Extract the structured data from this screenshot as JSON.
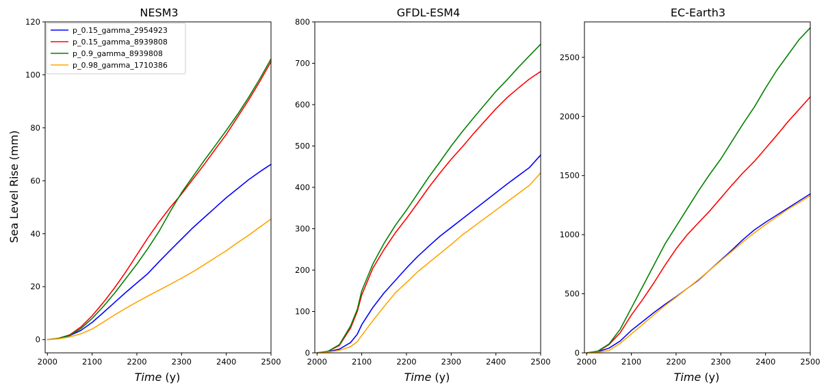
{
  "chart_data": [
    {
      "type": "line",
      "title": "NESM3",
      "xlabel_italic": "Time",
      "xlabel_unit": " (y)",
      "ylabel": "Sea Level Rise (mm)",
      "xlim": [
        1995,
        2500
      ],
      "ylim": [
        -5,
        120
      ],
      "xticks": [
        2000,
        2100,
        2200,
        2300,
        2400,
        2500
      ],
      "yticks": [
        0,
        20,
        40,
        60,
        80,
        100,
        120
      ],
      "legend": "top-left",
      "series": [
        {
          "name": "p_0.15_gamma_2954923",
          "color": "#0000ff",
          "x": [
            2000,
            2025,
            2050,
            2075,
            2100,
            2125,
            2150,
            2175,
            2200,
            2225,
            2250,
            2275,
            2300,
            2325,
            2350,
            2375,
            2400,
            2425,
            2450,
            2475,
            2500
          ],
          "y": [
            0,
            0.4,
            1.5,
            3.5,
            6.5,
            10.2,
            14.0,
            17.8,
            21.4,
            25.0,
            29.5,
            33.8,
            38.0,
            42.2,
            46.0,
            49.8,
            53.6,
            57.0,
            60.4,
            63.4,
            66.2
          ]
        },
        {
          "name": "p_0.15_gamma_8939808",
          "color": "#ff0000",
          "x": [
            2000,
            2025,
            2050,
            2075,
            2100,
            2125,
            2150,
            2175,
            2200,
            2225,
            2250,
            2275,
            2300,
            2325,
            2350,
            2375,
            2400,
            2425,
            2450,
            2475,
            2500
          ],
          "y": [
            0,
            0.5,
            1.8,
            4.8,
            9.0,
            14.0,
            19.5,
            25.5,
            32.0,
            38.5,
            44.5,
            50.0,
            55.0,
            60.5,
            66.0,
            71.8,
            77.5,
            84.0,
            90.5,
            97.5,
            105.0
          ]
        },
        {
          "name": "p_0.9_gamma_8939808",
          "color": "#008000",
          "x": [
            2000,
            2025,
            2050,
            2075,
            2100,
            2125,
            2150,
            2175,
            2200,
            2225,
            2250,
            2275,
            2300,
            2325,
            2350,
            2375,
            2400,
            2425,
            2450,
            2475,
            2500
          ],
          "y": [
            0,
            0.5,
            1.6,
            4.2,
            8.0,
            12.5,
            17.5,
            23.0,
            28.5,
            34.5,
            41.0,
            48.5,
            55.5,
            61.5,
            67.5,
            73.2,
            79.0,
            85.0,
            91.5,
            98.5,
            106.0
          ]
        },
        {
          "name": "p_0.98_gamma_1710386",
          "color": "#ffa500",
          "x": [
            2000,
            2025,
            2050,
            2075,
            2100,
            2125,
            2150,
            2175,
            2200,
            2225,
            2250,
            2275,
            2300,
            2325,
            2350,
            2375,
            2400,
            2425,
            2450,
            2475,
            2500
          ],
          "y": [
            0,
            0.3,
            1.0,
            2.2,
            4.0,
            6.6,
            9.3,
            11.8,
            14.2,
            16.5,
            18.7,
            20.9,
            23.2,
            25.6,
            28.2,
            30.9,
            33.6,
            36.6,
            39.4,
            42.5,
            45.5
          ]
        }
      ]
    },
    {
      "type": "line",
      "title": "GFDL-ESM4",
      "xlabel_italic": "Time",
      "xlabel_unit": " (y)",
      "xlim": [
        1995,
        2500
      ],
      "ylim": [
        0,
        800
      ],
      "xticks": [
        2000,
        2100,
        2200,
        2300,
        2400,
        2500
      ],
      "yticks": [
        0,
        100,
        200,
        300,
        400,
        500,
        600,
        700,
        800
      ],
      "series": [
        {
          "name": "p_0.15_gamma_2954923",
          "color": "#0000ff",
          "x": [
            2000,
            2025,
            2050,
            2075,
            2090,
            2100,
            2125,
            2150,
            2175,
            2200,
            2225,
            2250,
            2275,
            2300,
            2325,
            2350,
            2375,
            2400,
            2425,
            2450,
            2475,
            2500
          ],
          "y": [
            0,
            3,
            9,
            25,
            45,
            68,
            110,
            145,
            175,
            205,
            233,
            258,
            282,
            303,
            324,
            345,
            366,
            387,
            408,
            428,
            448,
            478
          ]
        },
        {
          "name": "p_0.15_gamma_8939808",
          "color": "#ff0000",
          "x": [
            2000,
            2025,
            2050,
            2075,
            2090,
            2100,
            2125,
            2150,
            2175,
            2200,
            2225,
            2250,
            2275,
            2300,
            2325,
            2350,
            2375,
            2400,
            2425,
            2450,
            2475,
            2500
          ],
          "y": [
            0,
            4,
            18,
            60,
            100,
            140,
            205,
            250,
            290,
            325,
            362,
            400,
            435,
            468,
            498,
            530,
            560,
            590,
            617,
            640,
            662,
            680
          ]
        },
        {
          "name": "p_0.9_gamma_8939808",
          "color": "#008000",
          "x": [
            2000,
            2025,
            2050,
            2075,
            2090,
            2100,
            2125,
            2150,
            2175,
            2200,
            2225,
            2250,
            2275,
            2300,
            2325,
            2350,
            2375,
            2400,
            2425,
            2450,
            2475,
            2500
          ],
          "y": [
            0,
            4,
            20,
            65,
            105,
            150,
            215,
            265,
            308,
            345,
            385,
            425,
            462,
            500,
            535,
            568,
            600,
            632,
            660,
            690,
            718,
            746
          ]
        },
        {
          "name": "p_0.98_gamma_1710386",
          "color": "#ffa500",
          "x": [
            2000,
            2025,
            2050,
            2075,
            2090,
            2100,
            2125,
            2150,
            2175,
            2200,
            2225,
            2250,
            2275,
            2300,
            2325,
            2350,
            2375,
            2400,
            2425,
            2450,
            2475,
            2500
          ],
          "y": [
            0,
            2,
            6,
            15,
            27,
            42,
            78,
            112,
            145,
            170,
            196,
            218,
            240,
            262,
            285,
            305,
            325,
            345,
            365,
            385,
            405,
            435
          ]
        }
      ]
    },
    {
      "type": "line",
      "title": "EC-Earth3",
      "xlabel_italic": "Time",
      "xlabel_unit": " (y)",
      "xlim": [
        1995,
        2500
      ],
      "ylim": [
        0,
        2800
      ],
      "xticks": [
        2000,
        2100,
        2200,
        2300,
        2400,
        2500
      ],
      "yticks": [
        0,
        500,
        1000,
        1500,
        2000,
        2500
      ],
      "series": [
        {
          "name": "p_0.15_gamma_2954923",
          "color": "#0000ff",
          "x": [
            2000,
            2025,
            2050,
            2075,
            2100,
            2125,
            2150,
            2175,
            2200,
            2225,
            2250,
            2275,
            2300,
            2325,
            2350,
            2375,
            2400,
            2425,
            2450,
            2475,
            2500
          ],
          "y": [
            0,
            10,
            40,
            100,
            190,
            265,
            340,
            410,
            475,
            545,
            615,
            700,
            785,
            870,
            960,
            1040,
            1105,
            1165,
            1225,
            1285,
            1345
          ]
        },
        {
          "name": "p_0.15_gamma_8939808",
          "color": "#ff0000",
          "x": [
            2000,
            2025,
            2050,
            2075,
            2100,
            2125,
            2150,
            2175,
            2200,
            2225,
            2250,
            2275,
            2300,
            2325,
            2350,
            2375,
            2400,
            2425,
            2450,
            2475,
            2500
          ],
          "y": [
            0,
            12,
            70,
            170,
            320,
            450,
            590,
            740,
            880,
            1000,
            1100,
            1200,
            1310,
            1420,
            1525,
            1620,
            1730,
            1840,
            1955,
            2060,
            2165
          ]
        },
        {
          "name": "p_0.9_gamma_8939808",
          "color": "#008000",
          "x": [
            2000,
            2025,
            2050,
            2075,
            2100,
            2125,
            2150,
            2175,
            2200,
            2225,
            2250,
            2275,
            2300,
            2325,
            2350,
            2375,
            2400,
            2425,
            2450,
            2475,
            2500
          ],
          "y": [
            0,
            15,
            75,
            200,
            380,
            560,
            740,
            920,
            1070,
            1220,
            1370,
            1510,
            1640,
            1790,
            1940,
            2080,
            2240,
            2390,
            2520,
            2650,
            2750
          ]
        },
        {
          "name": "p_0.98_gamma_1710386",
          "color": "#ffa500",
          "x": [
            2000,
            2025,
            2050,
            2075,
            2100,
            2125,
            2150,
            2175,
            2200,
            2225,
            2250,
            2275,
            2300,
            2325,
            2350,
            2375,
            2400,
            2425,
            2450,
            2475,
            2500
          ],
          "y": [
            0,
            5,
            20,
            80,
            160,
            240,
            320,
            400,
            470,
            545,
            620,
            700,
            780,
            860,
            940,
            1015,
            1085,
            1150,
            1215,
            1270,
            1330
          ]
        }
      ]
    }
  ]
}
